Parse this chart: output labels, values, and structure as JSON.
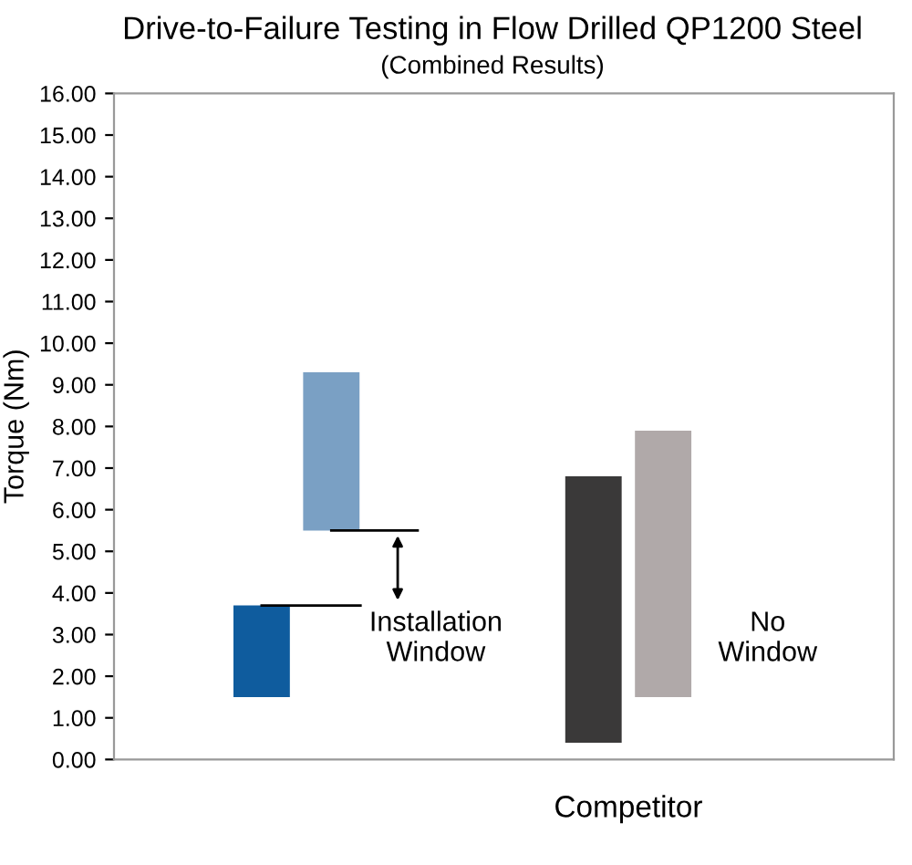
{
  "chart_data": {
    "type": "bar",
    "title": "Drive-to-Failure Testing in Flow Drilled QP1200 Steel",
    "subtitle": "(Combined Results)",
    "ylabel": "Torque (Nm)",
    "categories": [
      null,
      "Competitor"
    ],
    "series": [
      {
        "colors": [
          "#0f5c9e",
          "#3a3939"
        ],
        "base": [
          1.5,
          0.4
        ],
        "values": [
          2.2,
          6.4
        ]
      },
      {
        "colors": [
          "#7aa0c4",
          "#b0a9a9"
        ],
        "base": [
          5.5,
          1.5
        ],
        "values": [
          3.8,
          6.4
        ]
      }
    ],
    "ylim": [
      0,
      16
    ],
    "yticks": [
      {
        "value": 0,
        "label": "0.00"
      },
      {
        "value": 1,
        "label": "1.00"
      },
      {
        "value": 2,
        "label": "2.00"
      },
      {
        "value": 3,
        "label": "3.00"
      },
      {
        "value": 4,
        "label": "4.00"
      },
      {
        "value": 5,
        "label": "5.00"
      },
      {
        "value": 6,
        "label": "6.00"
      },
      {
        "value": 7,
        "label": "7.00"
      },
      {
        "value": 8,
        "label": "8.00"
      },
      {
        "value": 9,
        "label": "9.00"
      },
      {
        "value": 10,
        "label": "10.00"
      },
      {
        "value": 11,
        "label": "11.00"
      },
      {
        "value": 12,
        "label": "12.00"
      },
      {
        "value": 13,
        "label": "13.00"
      },
      {
        "value": 14,
        "label": "14.00"
      },
      {
        "value": 15,
        "label": "15.00"
      },
      {
        "value": 16,
        "label": "16.00"
      }
    ],
    "annotations": [
      "Installation\nWindow",
      "No\nWindow"
    ],
    "grid": false,
    "legend": false
  }
}
